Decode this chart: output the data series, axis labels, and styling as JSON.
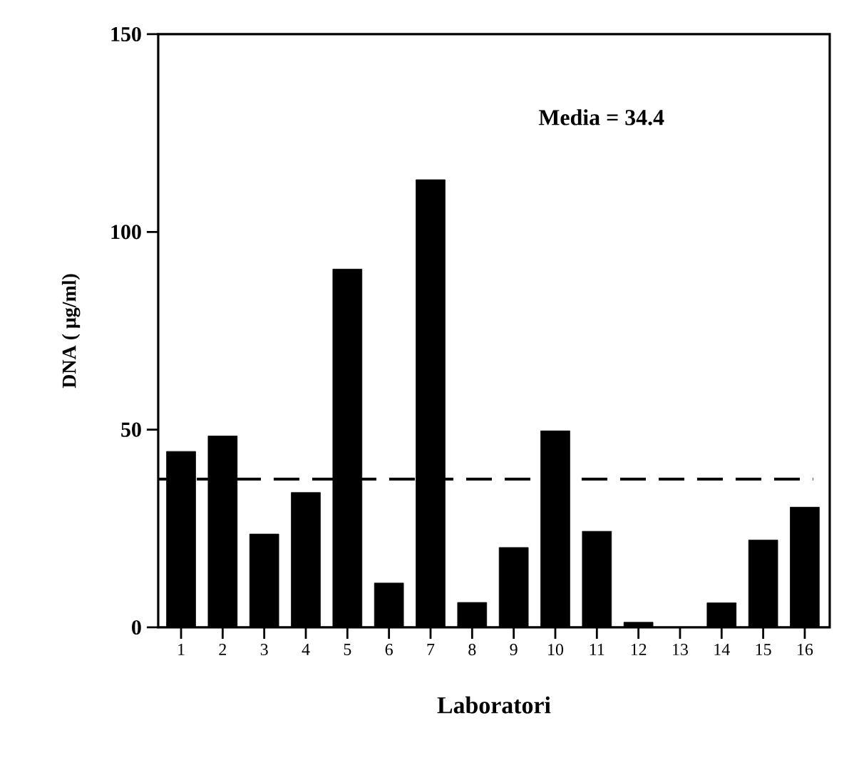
{
  "chart_data": {
    "type": "bar",
    "xlabel": "Laboratori",
    "ylabel": "DNA ( μg/ml)",
    "categories": [
      "1",
      "2",
      "3",
      "4",
      "5",
      "6",
      "7",
      "8",
      "9",
      "10",
      "11",
      "12",
      "13",
      "14",
      "15",
      "16"
    ],
    "values": [
      44.5,
      48.4,
      23.6,
      34.1,
      90.6,
      11.2,
      113.2,
      6.3,
      20.2,
      49.7,
      24.3,
      1.3,
      0,
      6.2,
      22.1,
      30.4
    ],
    "color": "#000000",
    "ylim": [
      0,
      150
    ],
    "yticks": [
      0,
      50,
      100,
      150
    ],
    "ref_lines": [
      {
        "axis": "y",
        "value": 37.5,
        "line_style": "dashed",
        "color": "#000000"
      }
    ],
    "annotations": [
      "Media = 34.4"
    ]
  }
}
